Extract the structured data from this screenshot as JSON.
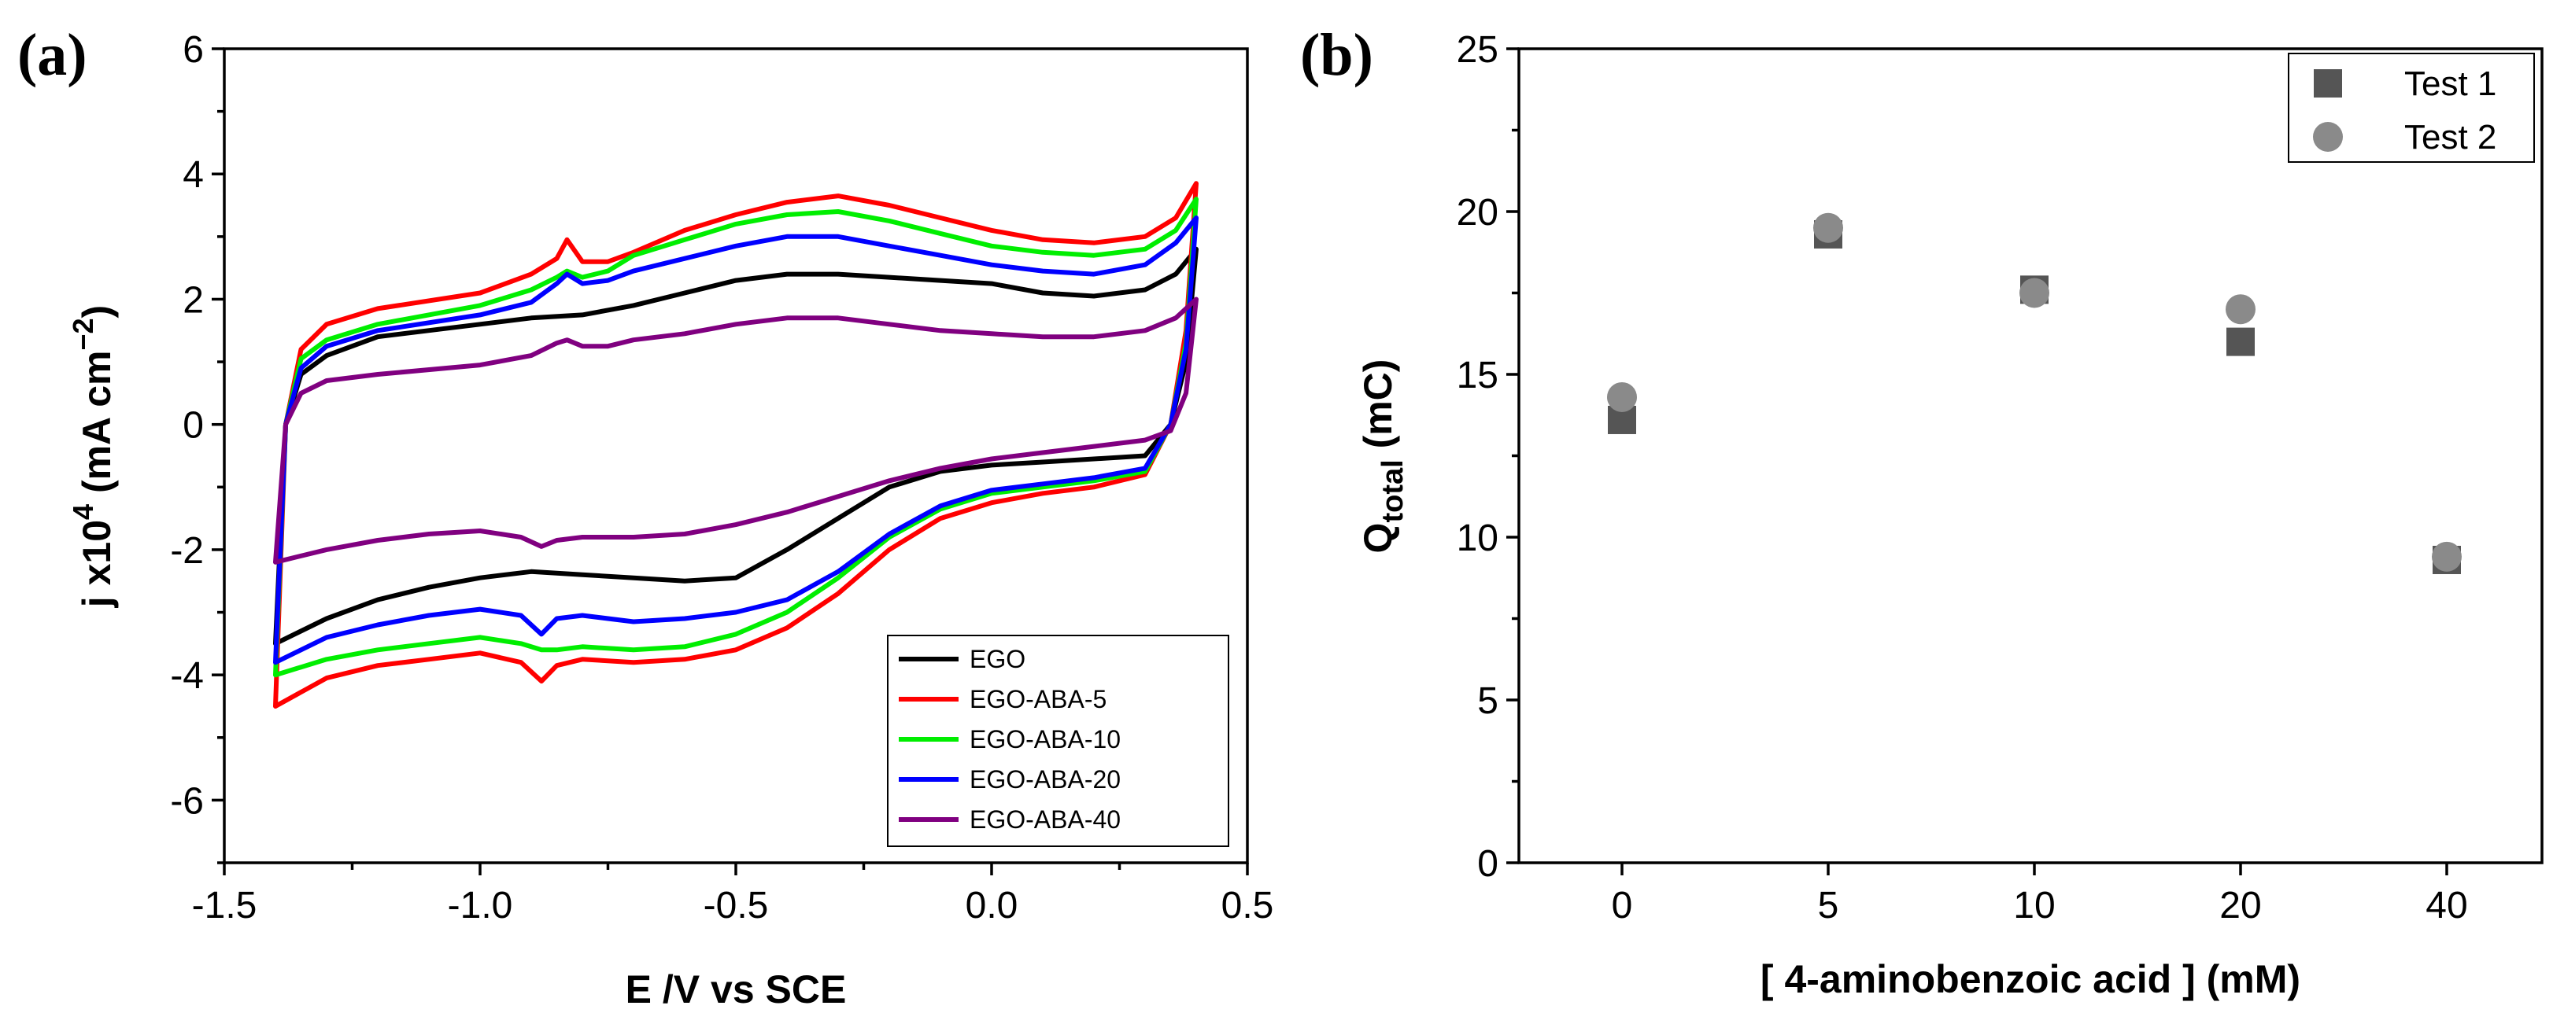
{
  "chart_data": [
    {
      "panel": "(a)",
      "type": "line",
      "xlabel": "E /V vs SCE",
      "ylabel_main": "j x10",
      "ylabel_exp": "4",
      "ylabel_unit": " (mA cm",
      "ylabel_unit_exp": "−2",
      "ylabel_close": ")",
      "xlim": [
        -1.5,
        0.5
      ],
      "ylim": [
        -7,
        6
      ],
      "xticks": [
        -1.5,
        -1.0,
        -0.5,
        0.0,
        0.5
      ],
      "xtick_labels": [
        "-1.5",
        "-1.0",
        "-0.5",
        "0.0",
        "0.5"
      ],
      "yticks": [
        -6,
        -4,
        -2,
        0,
        2,
        4,
        6
      ],
      "ytick_labels": [
        "-6",
        "-4",
        "-2",
        "0",
        "2",
        "4",
        "6"
      ],
      "legend_position": "bottom-right",
      "series": [
        {
          "name": "EGO",
          "color": "#000000",
          "forward": [
            [
              -1.4,
              -3.5
            ],
            [
              -1.38,
              0.0
            ],
            [
              -1.35,
              0.8
            ],
            [
              -1.3,
              1.1
            ],
            [
              -1.2,
              1.4
            ],
            [
              -1.0,
              1.6
            ],
            [
              -0.9,
              1.7
            ],
            [
              -0.8,
              1.75
            ],
            [
              -0.7,
              1.9
            ],
            [
              -0.6,
              2.1
            ],
            [
              -0.5,
              2.3
            ],
            [
              -0.4,
              2.4
            ],
            [
              -0.3,
              2.4
            ],
            [
              -0.2,
              2.35
            ],
            [
              -0.1,
              2.3
            ],
            [
              0.0,
              2.25
            ],
            [
              0.1,
              2.1
            ],
            [
              0.2,
              2.05
            ],
            [
              0.3,
              2.15
            ],
            [
              0.36,
              2.4
            ],
            [
              0.4,
              2.8
            ]
          ],
          "reverse": [
            [
              0.4,
              2.8
            ],
            [
              0.38,
              1.0
            ],
            [
              0.35,
              0.0
            ],
            [
              0.3,
              -0.5
            ],
            [
              0.2,
              -0.55
            ],
            [
              0.1,
              -0.6
            ],
            [
              0.0,
              -0.65
            ],
            [
              -0.1,
              -0.75
            ],
            [
              -0.2,
              -1.0
            ],
            [
              -0.3,
              -1.5
            ],
            [
              -0.4,
              -2.0
            ],
            [
              -0.5,
              -2.45
            ],
            [
              -0.6,
              -2.5
            ],
            [
              -0.7,
              -2.45
            ],
            [
              -0.8,
              -2.4
            ],
            [
              -0.9,
              -2.35
            ],
            [
              -1.0,
              -2.45
            ],
            [
              -1.1,
              -2.6
            ],
            [
              -1.2,
              -2.8
            ],
            [
              -1.3,
              -3.1
            ],
            [
              -1.4,
              -3.5
            ]
          ]
        },
        {
          "name": "EGO-ABA-5",
          "color": "#ff0000",
          "forward": [
            [
              -1.4,
              -4.5
            ],
            [
              -1.38,
              0.0
            ],
            [
              -1.35,
              1.2
            ],
            [
              -1.3,
              1.6
            ],
            [
              -1.2,
              1.85
            ],
            [
              -1.0,
              2.1
            ],
            [
              -0.9,
              2.4
            ],
            [
              -0.85,
              2.65
            ],
            [
              -0.83,
              2.95
            ],
            [
              -0.8,
              2.6
            ],
            [
              -0.75,
              2.6
            ],
            [
              -0.7,
              2.75
            ],
            [
              -0.6,
              3.1
            ],
            [
              -0.5,
              3.35
            ],
            [
              -0.4,
              3.55
            ],
            [
              -0.3,
              3.65
            ],
            [
              -0.2,
              3.5
            ],
            [
              -0.1,
              3.3
            ],
            [
              0.0,
              3.1
            ],
            [
              0.1,
              2.95
            ],
            [
              0.2,
              2.9
            ],
            [
              0.3,
              3.0
            ],
            [
              0.36,
              3.3
            ],
            [
              0.4,
              3.85
            ]
          ],
          "reverse": [
            [
              0.4,
              3.85
            ],
            [
              0.38,
              1.5
            ],
            [
              0.35,
              0.0
            ],
            [
              0.3,
              -0.8
            ],
            [
              0.2,
              -1.0
            ],
            [
              0.1,
              -1.1
            ],
            [
              0.0,
              -1.25
            ],
            [
              -0.1,
              -1.5
            ],
            [
              -0.2,
              -2.0
            ],
            [
              -0.3,
              -2.7
            ],
            [
              -0.4,
              -3.25
            ],
            [
              -0.5,
              -3.6
            ],
            [
              -0.6,
              -3.75
            ],
            [
              -0.7,
              -3.8
            ],
            [
              -0.8,
              -3.75
            ],
            [
              -0.85,
              -3.85
            ],
            [
              -0.88,
              -4.1
            ],
            [
              -0.92,
              -3.8
            ],
            [
              -1.0,
              -3.65
            ],
            [
              -1.1,
              -3.75
            ],
            [
              -1.2,
              -3.85
            ],
            [
              -1.3,
              -4.05
            ],
            [
              -1.4,
              -4.5
            ]
          ]
        },
        {
          "name": "EGO-ABA-10",
          "color": "#00ee00",
          "forward": [
            [
              -1.4,
              -4.0
            ],
            [
              -1.38,
              0.0
            ],
            [
              -1.35,
              1.05
            ],
            [
              -1.3,
              1.35
            ],
            [
              -1.2,
              1.6
            ],
            [
              -1.0,
              1.9
            ],
            [
              -0.9,
              2.15
            ],
            [
              -0.85,
              2.35
            ],
            [
              -0.83,
              2.45
            ],
            [
              -0.8,
              2.35
            ],
            [
              -0.75,
              2.45
            ],
            [
              -0.7,
              2.7
            ],
            [
              -0.6,
              2.95
            ],
            [
              -0.5,
              3.2
            ],
            [
              -0.4,
              3.35
            ],
            [
              -0.3,
              3.4
            ],
            [
              -0.2,
              3.25
            ],
            [
              -0.1,
              3.05
            ],
            [
              0.0,
              2.85
            ],
            [
              0.1,
              2.75
            ],
            [
              0.2,
              2.7
            ],
            [
              0.3,
              2.8
            ],
            [
              0.36,
              3.1
            ],
            [
              0.4,
              3.6
            ]
          ],
          "reverse": [
            [
              0.4,
              3.6
            ],
            [
              0.38,
              1.3
            ],
            [
              0.35,
              0.0
            ],
            [
              0.3,
              -0.75
            ],
            [
              0.2,
              -0.9
            ],
            [
              0.1,
              -1.0
            ],
            [
              0.0,
              -1.1
            ],
            [
              -0.1,
              -1.35
            ],
            [
              -0.2,
              -1.8
            ],
            [
              -0.3,
              -2.45
            ],
            [
              -0.4,
              -3.0
            ],
            [
              -0.5,
              -3.35
            ],
            [
              -0.6,
              -3.55
            ],
            [
              -0.7,
              -3.6
            ],
            [
              -0.8,
              -3.55
            ],
            [
              -0.85,
              -3.6
            ],
            [
              -0.88,
              -3.6
            ],
            [
              -0.92,
              -3.5
            ],
            [
              -1.0,
              -3.4
            ],
            [
              -1.1,
              -3.5
            ],
            [
              -1.2,
              -3.6
            ],
            [
              -1.3,
              -3.75
            ],
            [
              -1.4,
              -4.0
            ]
          ]
        },
        {
          "name": "EGO-ABA-20",
          "color": "#0000ff",
          "forward": [
            [
              -1.4,
              -3.8
            ],
            [
              -1.38,
              0.0
            ],
            [
              -1.35,
              0.9
            ],
            [
              -1.3,
              1.25
            ],
            [
              -1.2,
              1.5
            ],
            [
              -1.0,
              1.75
            ],
            [
              -0.9,
              1.95
            ],
            [
              -0.85,
              2.25
            ],
            [
              -0.83,
              2.4
            ],
            [
              -0.8,
              2.25
            ],
            [
              -0.75,
              2.3
            ],
            [
              -0.7,
              2.45
            ],
            [
              -0.6,
              2.65
            ],
            [
              -0.5,
              2.85
            ],
            [
              -0.4,
              3.0
            ],
            [
              -0.3,
              3.0
            ],
            [
              -0.2,
              2.85
            ],
            [
              -0.1,
              2.7
            ],
            [
              0.0,
              2.55
            ],
            [
              0.1,
              2.45
            ],
            [
              0.2,
              2.4
            ],
            [
              0.3,
              2.55
            ],
            [
              0.36,
              2.9
            ],
            [
              0.4,
              3.3
            ]
          ],
          "reverse": [
            [
              0.4,
              3.3
            ],
            [
              0.38,
              1.2
            ],
            [
              0.35,
              0.0
            ],
            [
              0.3,
              -0.7
            ],
            [
              0.2,
              -0.85
            ],
            [
              0.1,
              -0.95
            ],
            [
              0.0,
              -1.05
            ],
            [
              -0.1,
              -1.3
            ],
            [
              -0.2,
              -1.75
            ],
            [
              -0.3,
              -2.35
            ],
            [
              -0.4,
              -2.8
            ],
            [
              -0.5,
              -3.0
            ],
            [
              -0.6,
              -3.1
            ],
            [
              -0.7,
              -3.15
            ],
            [
              -0.8,
              -3.05
            ],
            [
              -0.85,
              -3.1
            ],
            [
              -0.88,
              -3.35
            ],
            [
              -0.92,
              -3.05
            ],
            [
              -1.0,
              -2.95
            ],
            [
              -1.1,
              -3.05
            ],
            [
              -1.2,
              -3.2
            ],
            [
              -1.3,
              -3.4
            ],
            [
              -1.4,
              -3.8
            ]
          ]
        },
        {
          "name": "EGO-ABA-40",
          "color": "#800080",
          "forward": [
            [
              -1.4,
              -2.2
            ],
            [
              -1.38,
              0.0
            ],
            [
              -1.35,
              0.5
            ],
            [
              -1.3,
              0.7
            ],
            [
              -1.2,
              0.8
            ],
            [
              -1.0,
              0.95
            ],
            [
              -0.9,
              1.1
            ],
            [
              -0.85,
              1.3
            ],
            [
              -0.83,
              1.35
            ],
            [
              -0.8,
              1.25
            ],
            [
              -0.75,
              1.25
            ],
            [
              -0.7,
              1.35
            ],
            [
              -0.6,
              1.45
            ],
            [
              -0.5,
              1.6
            ],
            [
              -0.4,
              1.7
            ],
            [
              -0.3,
              1.7
            ],
            [
              -0.2,
              1.6
            ],
            [
              -0.1,
              1.5
            ],
            [
              0.0,
              1.45
            ],
            [
              0.1,
              1.4
            ],
            [
              0.2,
              1.4
            ],
            [
              0.3,
              1.5
            ],
            [
              0.36,
              1.7
            ],
            [
              0.4,
              2.0
            ]
          ],
          "reverse": [
            [
              0.4,
              2.0
            ],
            [
              0.38,
              0.5
            ],
            [
              0.35,
              -0.1
            ],
            [
              0.3,
              -0.25
            ],
            [
              0.2,
              -0.35
            ],
            [
              0.1,
              -0.45
            ],
            [
              0.0,
              -0.55
            ],
            [
              -0.1,
              -0.7
            ],
            [
              -0.2,
              -0.9
            ],
            [
              -0.3,
              -1.15
            ],
            [
              -0.4,
              -1.4
            ],
            [
              -0.5,
              -1.6
            ],
            [
              -0.6,
              -1.75
            ],
            [
              -0.7,
              -1.8
            ],
            [
              -0.8,
              -1.8
            ],
            [
              -0.85,
              -1.85
            ],
            [
              -0.88,
              -1.95
            ],
            [
              -0.92,
              -1.8
            ],
            [
              -1.0,
              -1.7
            ],
            [
              -1.1,
              -1.75
            ],
            [
              -1.2,
              -1.85
            ],
            [
              -1.3,
              -2.0
            ],
            [
              -1.4,
              -2.2
            ]
          ]
        }
      ]
    },
    {
      "panel": "(b)",
      "type": "scatter",
      "xlabel": "[ 4-aminobenzoic acid ] (mM)",
      "ylabel_main": "Q",
      "ylabel_sub": "total",
      "ylabel_unit": " (mC)",
      "categories": [
        "0",
        "5",
        "10",
        "20",
        "40"
      ],
      "ylim": [
        0,
        25
      ],
      "yticks": [
        0,
        5,
        10,
        15,
        20,
        25
      ],
      "ytick_labels": [
        "0",
        "5",
        "10",
        "15",
        "20",
        "25"
      ],
      "legend_position": "top-right",
      "series": [
        {
          "name": "Test 1",
          "marker": "square",
          "color": "#555555",
          "values": [
            13.6,
            19.3,
            17.6,
            16.0,
            9.3
          ]
        },
        {
          "name": "Test 2",
          "marker": "circle",
          "color": "#8a8a8a",
          "values": [
            14.3,
            19.5,
            17.5,
            17.0,
            9.4
          ]
        }
      ]
    }
  ]
}
